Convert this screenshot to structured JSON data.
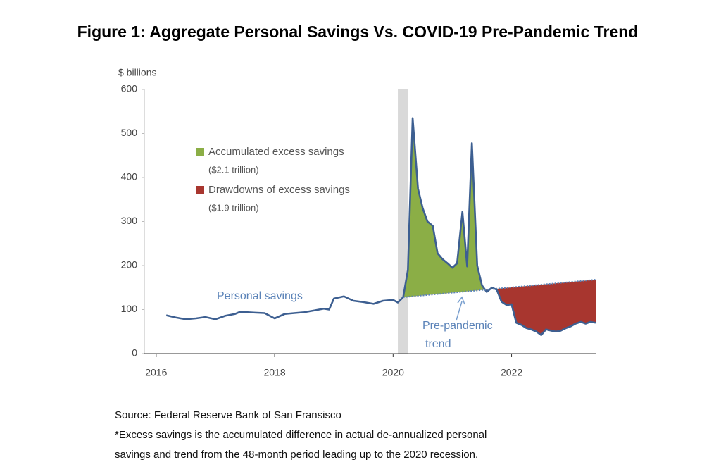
{
  "chart_data": {
    "type": "line",
    "title": "Figure 1: Aggregate Personal Savings Vs. COVID-19 Pre-Pandemic Trend",
    "y_label": "$ billions",
    "xlim": [
      2015.8,
      2023.42
    ],
    "xticks": [
      2016,
      2018,
      2020,
      2022
    ],
    "ylim": [
      0,
      600
    ],
    "yticks": [
      0,
      100,
      200,
      300,
      400,
      500,
      600
    ],
    "grid": false,
    "shaded_period": [
      2020.08,
      2020.25
    ],
    "series": [
      {
        "color": "#3d5f91",
        "x": [
          2016.17,
          2016.33,
          2016.5,
          2016.67,
          2016.83,
          2017.0,
          2017.17,
          2017.33,
          2017.42,
          2017.67,
          2017.83,
          2018.0,
          2018.17,
          2018.33,
          2018.5,
          2018.67,
          2018.83,
          2018.92,
          2019.0,
          2019.17,
          2019.33,
          2019.5,
          2019.67,
          2019.83,
          2020.0,
          2020.08,
          2020.17,
          2020.25,
          2020.33,
          2020.42,
          2020.5,
          2020.58,
          2020.67,
          2020.75,
          2020.83,
          2020.92,
          2021.0,
          2021.08,
          2021.17,
          2021.25,
          2021.33,
          2021.42,
          2021.5,
          2021.58,
          2021.67,
          2021.75,
          2021.83,
          2021.92,
          2022.0,
          2022.08,
          2022.17,
          2022.25,
          2022.33,
          2022.42,
          2022.5,
          2022.58,
          2022.67,
          2022.75,
          2022.83,
          2022.92,
          2023.0,
          2023.08,
          2023.17,
          2023.25,
          2023.33,
          2023.42
        ],
        "values": [
          87,
          82,
          78,
          80,
          83,
          78,
          86,
          90,
          95,
          93,
          92,
          80,
          90,
          92,
          94,
          98,
          102,
          100,
          125,
          130,
          120,
          117,
          113,
          120,
          122,
          116,
          128,
          190,
          535,
          375,
          330,
          300,
          290,
          228,
          215,
          205,
          195,
          205,
          322,
          198,
          478,
          200,
          155,
          140,
          150,
          145,
          118,
          110,
          112,
          70,
          65,
          58,
          55,
          50,
          42,
          55,
          52,
          50,
          52,
          58,
          62,
          68,
          72,
          68,
          72,
          70
        ]
      },
      {
        "color": "#5b83b8",
        "dashed": true,
        "x": [
          2020.17,
          2023.42
        ],
        "values": [
          128,
          168
        ]
      }
    ],
    "areas": [
      {
        "name": "Accumulated excess savings",
        "note": "($2.1 trillion)",
        "color": "#8bae46"
      },
      {
        "name": "Drawdowns of excess savings",
        "note": "($1.9 trillion)",
        "color": "#a8362f"
      }
    ],
    "labels": {
      "savings": "Personal savings",
      "trend": [
        "Pre-pandemic",
        "trend"
      ]
    },
    "footnotes": [
      "Source: Federal Reserve Bank of San Fransisco",
      "*Excess savings is the accumulated difference in actual de-annualized personal",
      "savings and trend from the 48-month period leading up to the 2020 recession."
    ]
  }
}
